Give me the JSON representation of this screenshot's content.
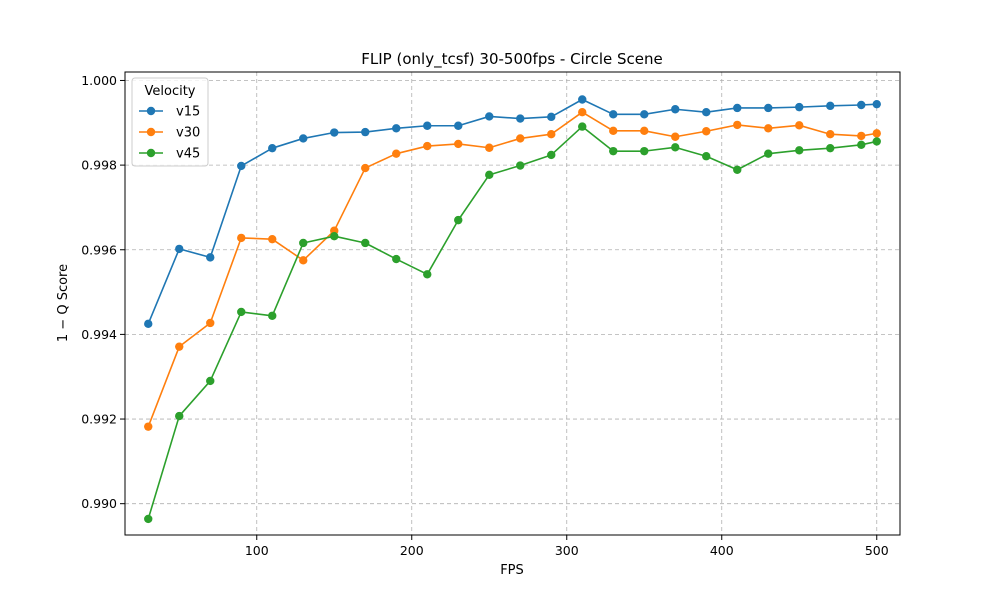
{
  "chart_data": {
    "type": "line",
    "title": "FLIP (only_tcsf) 30-500fps - Circle Scene",
    "xlabel": "FPS",
    "ylabel": "1 − Q Score",
    "xlim": [
      15,
      515
    ],
    "ylim": [
      0.98926,
      1.0002
    ],
    "x_ticks": [
      100,
      200,
      300,
      400,
      500
    ],
    "x_tick_labels": [
      "100",
      "200",
      "300",
      "400",
      "500"
    ],
    "y_ticks": [
      0.99,
      0.992,
      0.994,
      0.996,
      0.998,
      1.0
    ],
    "y_tick_labels": [
      "0.990",
      "0.992",
      "0.994",
      "0.996",
      "0.998",
      "1.000"
    ],
    "grid": true,
    "legend": {
      "title": "Velocity",
      "position": "top-left"
    },
    "x": [
      30,
      50,
      70,
      90,
      110,
      130,
      150,
      170,
      190,
      210,
      230,
      250,
      270,
      290,
      310,
      330,
      350,
      370,
      390,
      410,
      430,
      450,
      470,
      490,
      500
    ],
    "series": [
      {
        "name": "v15",
        "color": "#1f77b4",
        "values": [
          0.99425,
          0.99602,
          0.99582,
          0.99798,
          0.9984,
          0.99863,
          0.99877,
          0.99878,
          0.99887,
          0.99893,
          0.99893,
          0.99915,
          0.9991,
          0.99914,
          0.99955,
          0.9992,
          0.9992,
          0.99932,
          0.99925,
          0.99935,
          0.99935,
          0.99937,
          0.9994,
          0.99942,
          0.99944
        ]
      },
      {
        "name": "v30",
        "color": "#ff7f0e",
        "values": [
          0.99182,
          0.99371,
          0.99427,
          0.99628,
          0.99625,
          0.99575,
          0.99645,
          0.99793,
          0.99827,
          0.99845,
          0.9985,
          0.99841,
          0.99863,
          0.99873,
          0.99925,
          0.99881,
          0.99881,
          0.99867,
          0.9988,
          0.99895,
          0.99887,
          0.99894,
          0.99873,
          0.99869,
          0.99875
        ]
      },
      {
        "name": "v45",
        "color": "#2ca02c",
        "values": [
          0.98964,
          0.99207,
          0.9929,
          0.99453,
          0.99444,
          0.99616,
          0.99632,
          0.99616,
          0.99578,
          0.99542,
          0.9967,
          0.99777,
          0.99799,
          0.99824,
          0.99891,
          0.99833,
          0.99833,
          0.99842,
          0.99821,
          0.99789,
          0.99827,
          0.99835,
          0.9984,
          0.99848,
          0.99856
        ]
      }
    ]
  }
}
